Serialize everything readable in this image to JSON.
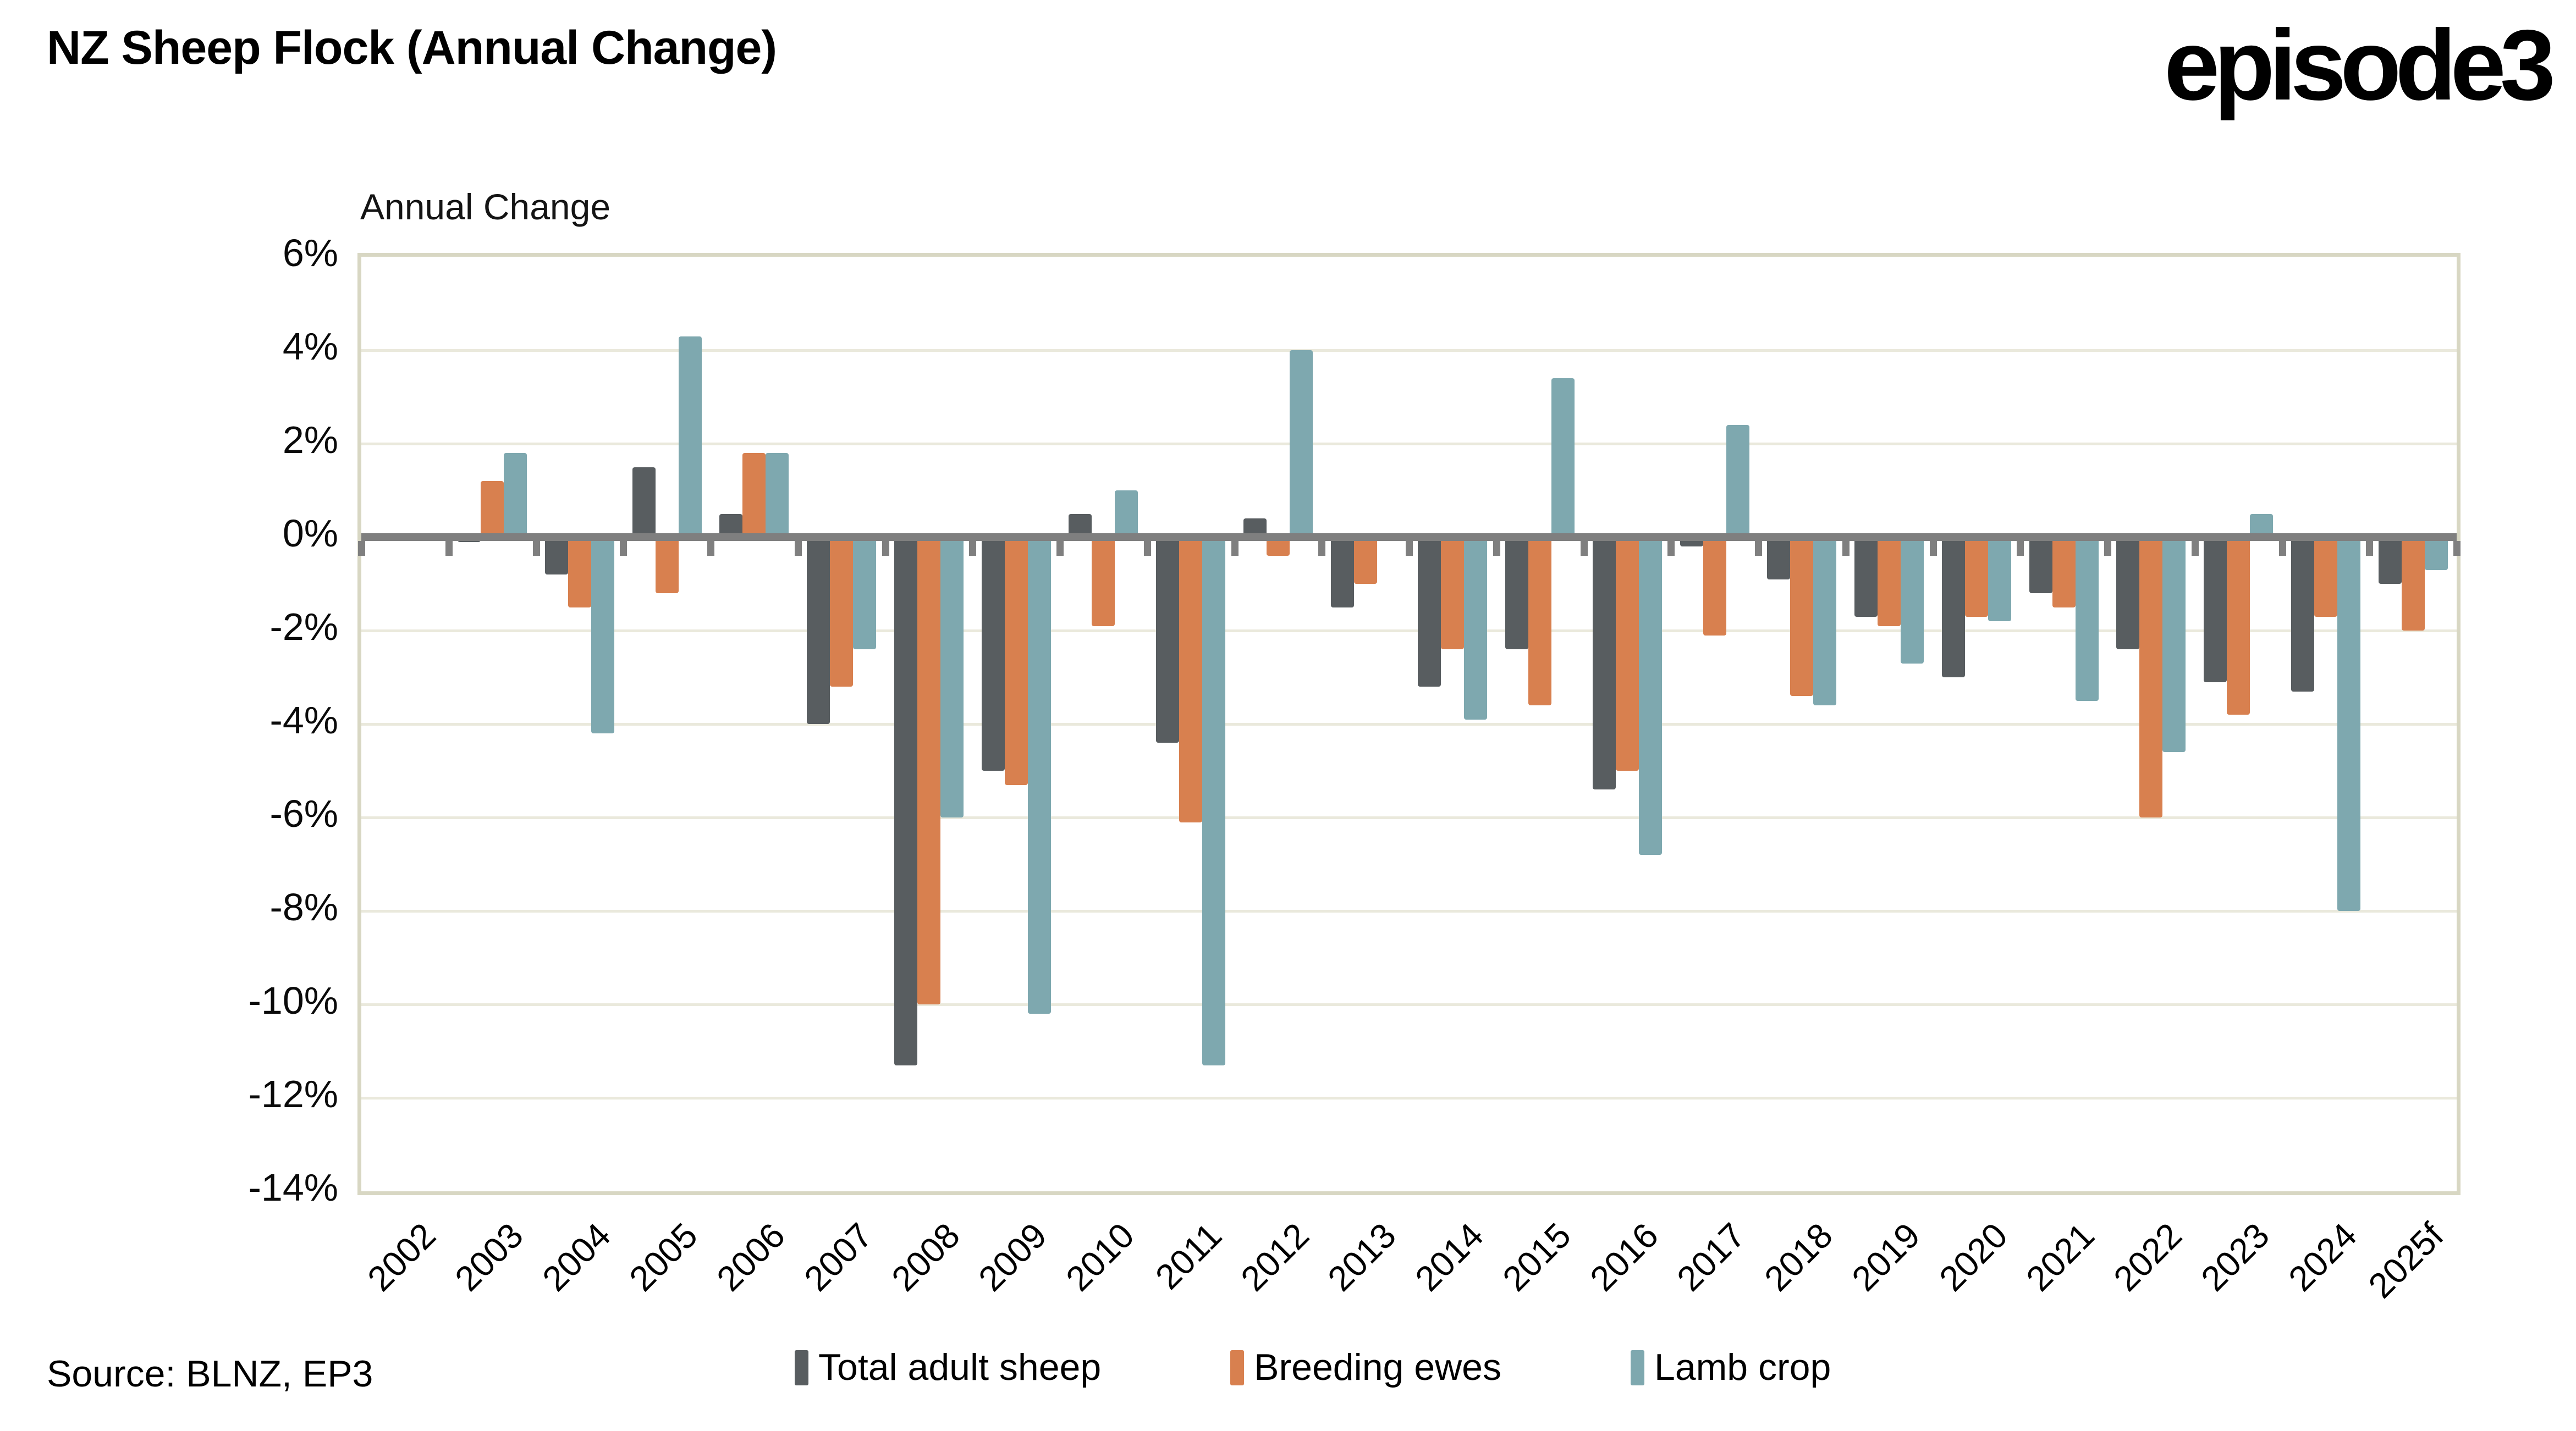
{
  "header": {
    "title": "NZ Sheep Flock (Annual Change)",
    "logo_text": "episode3"
  },
  "footer": {
    "source": "Source: BLNZ, EP3"
  },
  "chart_data": {
    "type": "bar",
    "title": "Annual Change",
    "categories": [
      "2002",
      "2003",
      "2004",
      "2005",
      "2006",
      "2007",
      "2008",
      "2009",
      "2010",
      "2011",
      "2012",
      "2013",
      "2014",
      "2015",
      "2016",
      "2017",
      "2018",
      "2019",
      "2020",
      "2021",
      "2022",
      "2023",
      "2024",
      "2025f"
    ],
    "series": [
      {
        "name": "Total adult sheep",
        "color": "#585D60",
        "values": [
          null,
          -0.1,
          -0.8,
          1.5,
          0.5,
          -4.0,
          -11.3,
          -5.0,
          0.5,
          -4.4,
          0.4,
          -1.5,
          -3.2,
          -2.4,
          -5.4,
          -0.2,
          -0.9,
          -1.7,
          -3.0,
          -1.2,
          -2.4,
          -3.1,
          -3.3,
          -1.0
        ]
      },
      {
        "name": "Breeding ewes",
        "color": "#D8804F",
        "values": [
          null,
          1.2,
          -1.5,
          -1.2,
          1.8,
          -3.2,
          -10.0,
          -5.3,
          -1.9,
          -6.1,
          -0.4,
          -1.0,
          -2.4,
          -3.6,
          -5.0,
          -2.1,
          -3.4,
          -1.9,
          -1.7,
          -1.5,
          -6.0,
          -3.8,
          -1.7,
          -2.0
        ]
      },
      {
        "name": "Lamb crop",
        "color": "#7EA8AF",
        "values": [
          null,
          1.8,
          -4.2,
          4.3,
          1.8,
          -2.4,
          -6.0,
          -10.2,
          1.0,
          -11.3,
          4.0,
          0.0,
          -3.9,
          3.4,
          -6.8,
          2.4,
          -3.6,
          -2.7,
          -1.8,
          -3.5,
          -4.6,
          0.5,
          -8.0,
          -0.7
        ]
      }
    ],
    "ylabel": "",
    "xlabel": "",
    "ylim": [
      -14,
      6
    ],
    "ytick_step": 2,
    "ytick_labels": [
      "6%",
      "4%",
      "2%",
      "0%",
      "-2%",
      "-4%",
      "-6%",
      "-8%",
      "-10%",
      "-12%",
      "-14%"
    ],
    "grid": true,
    "legend_position": "bottom",
    "axis_color": "#7F7F7F",
    "gridline_color": "#EAE9DC",
    "frame_color": "#D8D7C3"
  }
}
